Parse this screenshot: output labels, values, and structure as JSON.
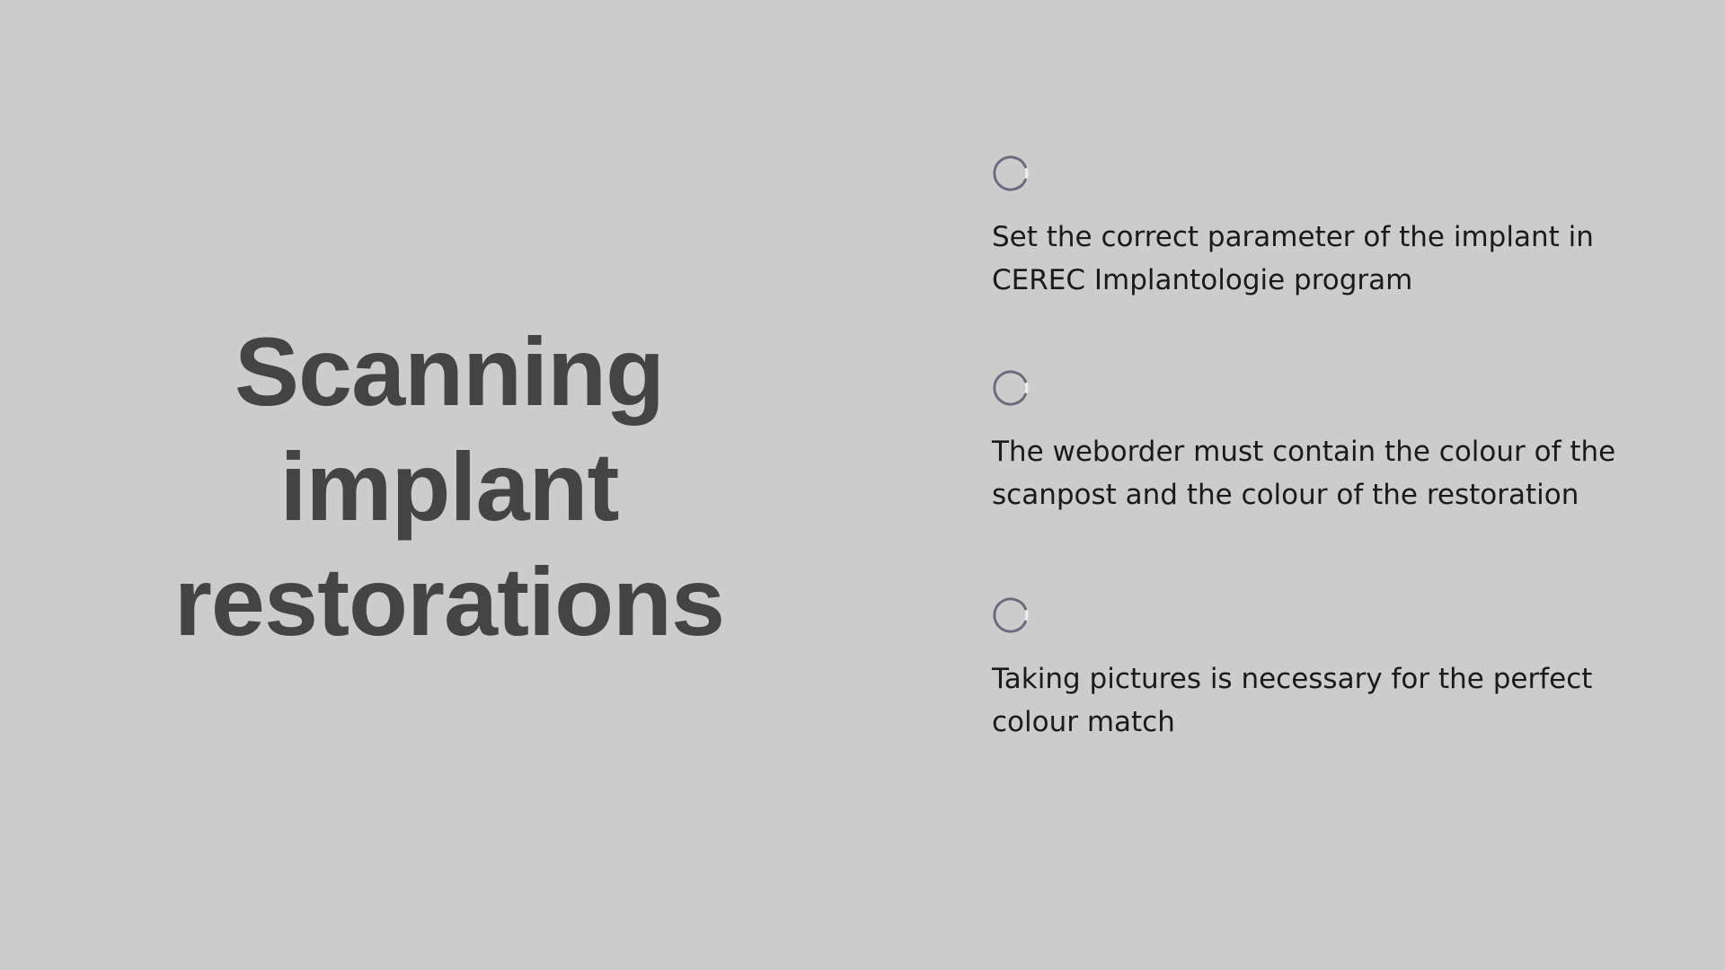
{
  "slide": {
    "title": "Scanning implant restorations",
    "bullet_icon": "loading-circle-icon",
    "bullets": [
      {
        "text": "Set the correct parameter of the implant in CEREC Implantologie program"
      },
      {
        "text": "The weborder must contain the colour of the scanpost and the colour of the restoration"
      },
      {
        "text": "Taking pictures is necessary for the perfect colour match"
      }
    ]
  },
  "colors": {
    "background": "#cccccc",
    "title": "#444444",
    "body_text": "#1a1a1a",
    "icon": "#6b6b80"
  }
}
